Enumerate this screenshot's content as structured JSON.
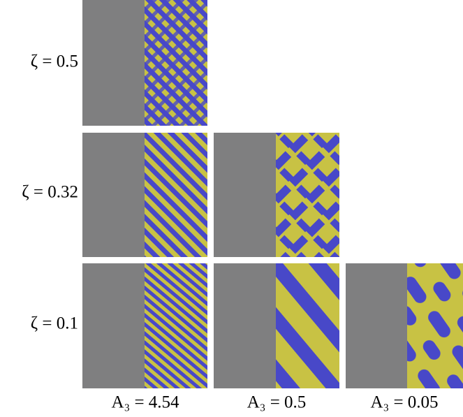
{
  "row_labels": [
    "ζ = 0.5",
    "ζ = 0.32",
    "ζ = 0.1"
  ],
  "column_labels": [
    "A₃ = 4.54",
    "A₃ = 0.5",
    "A₃ = 0.05"
  ]
}
